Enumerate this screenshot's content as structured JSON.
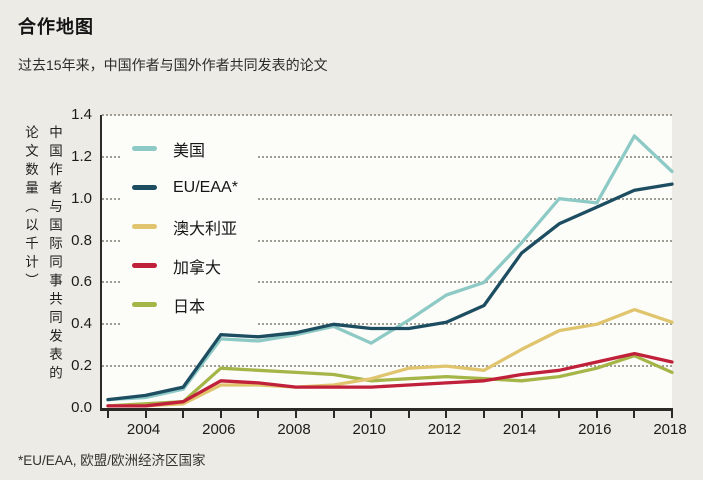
{
  "header": {
    "title": "合作地图",
    "subtitle": "过去15年来，中国作者与国外作者共同发表的论文"
  },
  "footnote": {
    "text": "*EU/EAA, 欧盟/欧洲经济区国家"
  },
  "colors": {
    "page_bg": "#ecebe5",
    "plot_bg": "#fcfcf9",
    "axis": "#2a2a26",
    "grid_dots": "#9e9e95"
  },
  "chart_data": {
    "type": "line",
    "title": "合作地图",
    "subtitle": "过去15年来，中国作者与国外作者共同发表的论文",
    "y_axis_label": "中国作者与国际同事共同发表的论文数量（以千计）",
    "x": [
      2003,
      2004,
      2005,
      2006,
      2007,
      2008,
      2009,
      2010,
      2011,
      2012,
      2013,
      2014,
      2015,
      2016,
      2017,
      2018
    ],
    "x_tick_labels": [
      "2004",
      "2006",
      "2008",
      "2010",
      "2012",
      "2014",
      "2016",
      "2018"
    ],
    "y_ticks": [
      "0.0",
      "0.2",
      "0.4",
      "0.6",
      "0.8",
      "1.0",
      "1.2",
      "1.4"
    ],
    "ylim": [
      0,
      1.4
    ],
    "grid": "horizontal-dotted",
    "legend_position": "inside-top-left",
    "series": [
      {
        "name": "美国",
        "color": "#8ecac5",
        "values": [
          0.04,
          0.05,
          0.09,
          0.33,
          0.32,
          0.35,
          0.39,
          0.31,
          0.42,
          0.54,
          0.6,
          0.79,
          1.0,
          0.98,
          1.3,
          1.13
        ]
      },
      {
        "name": "EU/EAA*",
        "color": "#1d4d61",
        "values": [
          0.04,
          0.06,
          0.1,
          0.35,
          0.34,
          0.36,
          0.4,
          0.38,
          0.38,
          0.41,
          0.49,
          0.74,
          0.88,
          0.96,
          1.04,
          1.07
        ]
      },
      {
        "name": "澳大利亚",
        "color": "#e0c56e",
        "values": [
          0.01,
          0.01,
          0.02,
          0.11,
          0.11,
          0.1,
          0.11,
          0.14,
          0.19,
          0.2,
          0.18,
          0.28,
          0.37,
          0.4,
          0.47,
          0.41
        ]
      },
      {
        "name": "加拿大",
        "color": "#c02039",
        "values": [
          0.01,
          0.01,
          0.03,
          0.13,
          0.12,
          0.1,
          0.1,
          0.1,
          0.11,
          0.12,
          0.13,
          0.16,
          0.18,
          0.22,
          0.26,
          0.22
        ]
      },
      {
        "name": "日本",
        "color": "#a6b548",
        "values": [
          0.01,
          0.02,
          0.03,
          0.19,
          0.18,
          0.17,
          0.16,
          0.13,
          0.14,
          0.15,
          0.14,
          0.13,
          0.15,
          0.19,
          0.25,
          0.17
        ]
      }
    ],
    "draw_order": [
      4,
      2,
      3,
      0,
      1
    ]
  }
}
